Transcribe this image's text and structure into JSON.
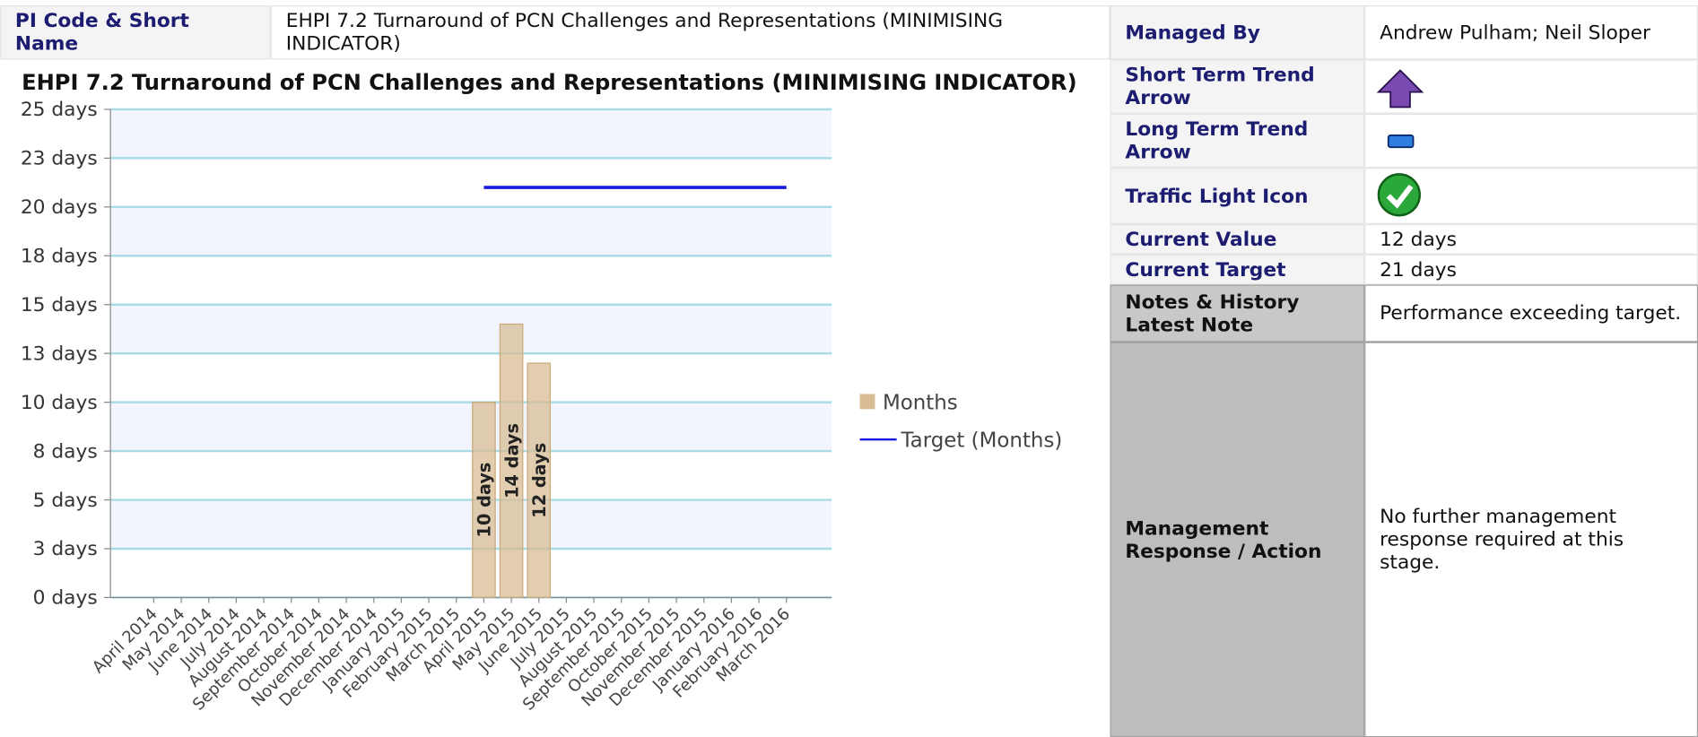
{
  "header": {
    "label": "PI Code & Short Name",
    "value": "EHPI 7.2 Turnaround of PCN Challenges and Representations (MINIMISING INDICATOR)"
  },
  "details": [
    {
      "label": "Managed By",
      "value": "Andrew Pulham; Neil Sloper"
    },
    {
      "label": "Short Term Trend Arrow"
    },
    {
      "label": "Long Term Trend Arrow"
    },
    {
      "label": "Traffic Light Icon"
    },
    {
      "label": "Current Value",
      "value": "12 days"
    },
    {
      "label": "Current Target",
      "value": "21 days"
    },
    {
      "label": "Notes & History Latest Note",
      "value": "Performance exceeding target."
    },
    {
      "label": "Management Response / Action",
      "value": "No further management response required at this stage."
    }
  ],
  "chart_data": {
    "type": "bar",
    "title": "EHPI 7.2 Turnaround of PCN Challenges and Representations (MINIMISING INDICATOR)",
    "categories": [
      "April 2014",
      "May 2014",
      "June 2014",
      "July 2014",
      "August 2014",
      "September 2014",
      "October 2014",
      "November 2014",
      "December 2014",
      "January 2015",
      "February 2015",
      "March 2015",
      "April 2015",
      "May 2015",
      "June 2015",
      "July 2015",
      "August 2015",
      "September 2015",
      "October 2015",
      "November 2015",
      "December 2015",
      "January 2016",
      "February 2016",
      "March 2016"
    ],
    "series": [
      {
        "name": "Months",
        "type": "bar",
        "color": "#d8bc94",
        "values": [
          null,
          null,
          null,
          null,
          null,
          null,
          null,
          null,
          null,
          null,
          null,
          null,
          10,
          14,
          12,
          null,
          null,
          null,
          null,
          null,
          null,
          null,
          null,
          null
        ],
        "value_labels": [
          null,
          null,
          null,
          null,
          null,
          null,
          null,
          null,
          null,
          null,
          null,
          null,
          "10 days",
          "14 days",
          "12 days",
          null,
          null,
          null,
          null,
          null,
          null,
          null,
          null,
          null
        ]
      },
      {
        "name": "Target (Months)",
        "type": "line",
        "color": "#1a1ae0",
        "values": [
          null,
          null,
          null,
          null,
          null,
          null,
          null,
          null,
          null,
          null,
          null,
          null,
          21,
          21,
          21,
          21,
          21,
          21,
          21,
          21,
          21,
          21,
          21,
          21
        ]
      }
    ],
    "ylim": [
      0,
      25
    ],
    "yticks": [
      {
        "value": 0,
        "label": "0 days"
      },
      {
        "value": 2.5,
        "label": "3 days"
      },
      {
        "value": 5,
        "label": "5 days"
      },
      {
        "value": 7.5,
        "label": "8 days"
      },
      {
        "value": 10,
        "label": "10 days"
      },
      {
        "value": 12.5,
        "label": "13 days"
      },
      {
        "value": 15,
        "label": "15 days"
      },
      {
        "value": 17.5,
        "label": "18 days"
      },
      {
        "value": 20,
        "label": "20 days"
      },
      {
        "value": 22.5,
        "label": "23 days"
      },
      {
        "value": 25,
        "label": "25 days"
      }
    ],
    "grid": true
  }
}
